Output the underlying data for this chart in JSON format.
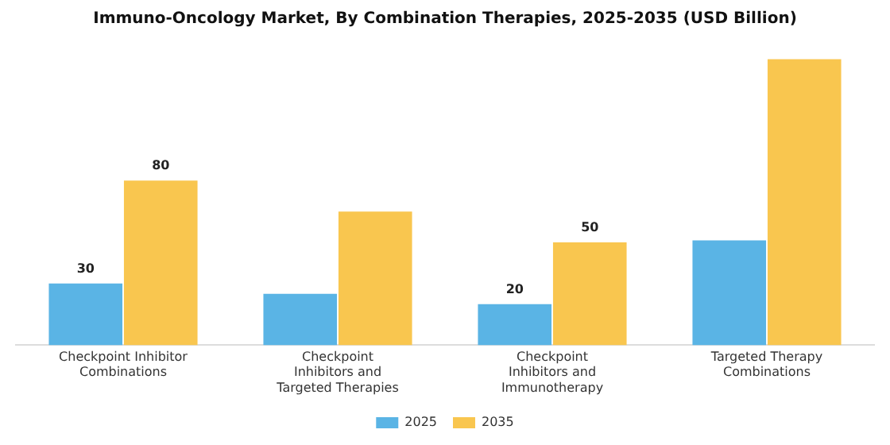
{
  "chart_data": {
    "type": "bar",
    "title": "Immuno-Oncology Market, By Combination Therapies, 2025-2035 (USD Billion)",
    "categories": [
      "Checkpoint Inhibitor Combinations",
      "Checkpoint Inhibitors and Targeted Therapies",
      "Checkpoint Inhibitors and Immunotherapy",
      "Targeted Therapy Combinations"
    ],
    "series": [
      {
        "name": "2025",
        "color": "#5ab4e5",
        "values": [
          30,
          25,
          20,
          51
        ],
        "value_labels": [
          "30",
          null,
          "20",
          null
        ]
      },
      {
        "name": "2035",
        "color": "#f9c64f",
        "values": [
          80,
          65,
          50,
          139
        ],
        "value_labels": [
          "80",
          null,
          "50",
          null
        ]
      }
    ],
    "legend": "bottom",
    "grid": false
  }
}
